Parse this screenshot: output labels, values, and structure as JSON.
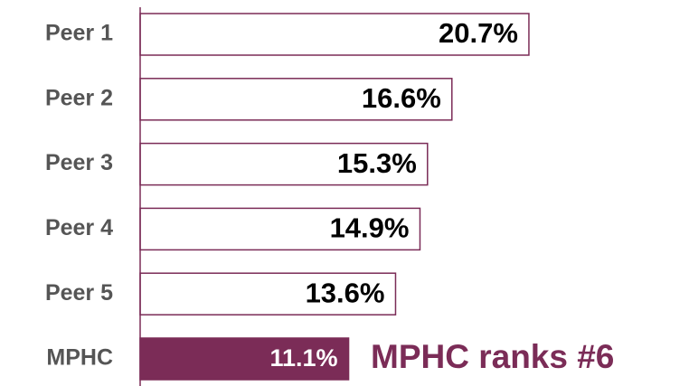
{
  "chart_data": {
    "type": "barh",
    "categories": [
      "Peer 1",
      "Peer 2",
      "Peer 3",
      "Peer 4",
      "Peer 5",
      "MPHC"
    ],
    "values": [
      20.7,
      16.6,
      15.3,
      14.9,
      13.6,
      11.1
    ],
    "value_labels": [
      "20.7%",
      "16.6%",
      "15.3%",
      "14.9%",
      "13.6%",
      "11.1%"
    ],
    "colors": [
      "#ffffff",
      "#ffffff",
      "#ffffff",
      "#ffffff",
      "#ffffff",
      "#7b2c57"
    ],
    "edge_color": "#7b2c57",
    "annotation": "MPHC ranks #6"
  }
}
